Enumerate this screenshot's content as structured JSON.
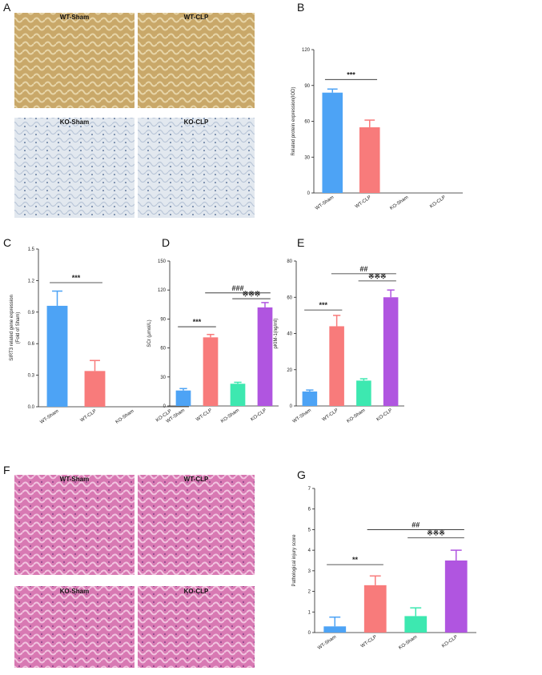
{
  "panels": {
    "letters": [
      "A",
      "B",
      "C",
      "D",
      "E",
      "F",
      "G"
    ],
    "images_a": [
      "WT-Sham",
      "WT-CLP",
      "KO-Sham",
      "KO-CLP"
    ],
    "images_f": [
      "WT-Sham",
      "WT-CLP",
      "KO-Sham",
      "KO-CLP"
    ]
  },
  "chart_data": [
    {
      "type": "bar",
      "ylabel": "Related protein expression(IOD)",
      "categories": [
        "WT-Sham",
        "WT-CLP",
        "KO-Sham",
        "KO-CLP"
      ],
      "values": [
        84,
        55,
        null,
        null
      ],
      "errors": [
        3,
        6,
        null,
        null
      ],
      "colors": [
        "#4da3f5",
        "#f87b7b",
        "#3de8b0",
        "#b055e0"
      ],
      "ylim": [
        0,
        120
      ],
      "yticks": [
        0,
        30,
        60,
        90,
        120
      ],
      "annotations": [
        "***"
      ]
    },
    {
      "type": "bar",
      "ylabel": [
        "SIRT3 related gene expression",
        "(Fold of Sham)"
      ],
      "categories": [
        "WT-Sham",
        "WT-CLP",
        "KO-Sham",
        "KO-CLP"
      ],
      "values": [
        0.96,
        0.34,
        null,
        null
      ],
      "errors": [
        0.14,
        0.1,
        null,
        null
      ],
      "colors": [
        "#4da3f5",
        "#f87b7b",
        "#3de8b0",
        "#b055e0"
      ],
      "ylim": [
        0,
        1.5
      ],
      "yticks": [
        {
          "value": 0,
          "label": "0.0"
        },
        0.3,
        0.6,
        0.9,
        1.2,
        1.5
      ],
      "annotations": [
        "***"
      ]
    },
    {
      "type": "bar",
      "ylabel": "SCr (μmol/L)",
      "categories": [
        "WT-Sham",
        "WT-CLP",
        "KO-Sham",
        "KO-CLP"
      ],
      "values": [
        16,
        71,
        23,
        102
      ],
      "errors": [
        2,
        3,
        1.5,
        5
      ],
      "colors": [
        "#4da3f5",
        "#f87b7b",
        "#3de8b0",
        "#b055e0"
      ],
      "ylim": [
        0,
        150
      ],
      "yticks": [
        0,
        30,
        60,
        90,
        120,
        150
      ],
      "annotations": [
        "***",
        "###",
        "※※※"
      ]
    },
    {
      "type": "bar",
      "ylabel": "pKIM-1(ng/ml)",
      "categories": [
        "WT-Sham",
        "WT-CLP",
        "KO-Sham",
        "KO-CLP"
      ],
      "values": [
        8,
        44,
        14,
        60
      ],
      "errors": [
        0.8,
        6,
        1,
        4
      ],
      "colors": [
        "#4da3f5",
        "#f87b7b",
        "#3de8b0",
        "#b055e0"
      ],
      "ylim": [
        0,
        80
      ],
      "yticks": [
        0,
        20,
        40,
        60,
        80
      ],
      "annotations": [
        "***",
        "##",
        "※※※"
      ]
    },
    {
      "type": "bar",
      "ylabel": "Pathological injury score",
      "categories": [
        "WT-Sham",
        "WT-CLP",
        "KO-Sham",
        "KO-CLP"
      ],
      "values": [
        0.3,
        2.3,
        0.8,
        3.5
      ],
      "errors": [
        0.45,
        0.45,
        0.4,
        0.5
      ],
      "colors": [
        "#4da3f5",
        "#f87b7b",
        "#3de8b0",
        "#b055e0"
      ],
      "ylim": [
        0,
        7
      ],
      "yticks": [
        0,
        1,
        2,
        3,
        4,
        5,
        6,
        7
      ],
      "annotations": [
        "**",
        "##",
        "※※※"
      ]
    }
  ]
}
